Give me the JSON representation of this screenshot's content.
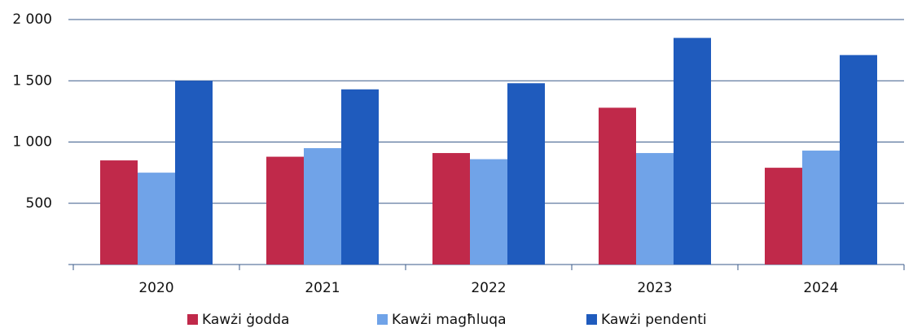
{
  "chart_data": {
    "type": "bar",
    "categories": [
      "2020",
      "2021",
      "2022",
      "2023",
      "2024"
    ],
    "series": [
      {
        "name": "Kawżi ġodda",
        "color": "#c0294a",
        "values": [
          850,
          880,
          910,
          1280,
          790
        ]
      },
      {
        "name": "Kawżi magħluqa",
        "color": "#70a3e8",
        "values": [
          750,
          950,
          860,
          910,
          930
        ]
      },
      {
        "name": "Kawżi pendenti",
        "color": "#1f5bbd",
        "values": [
          1500,
          1430,
          1480,
          1850,
          1710
        ]
      }
    ],
    "ylim": [
      0,
      2000
    ],
    "yticks": [
      {
        "value": 500,
        "label": "500"
      },
      {
        "value": 1000,
        "label": "1 000"
      },
      {
        "value": 1500,
        "label": "1 500"
      },
      {
        "value": 2000,
        "label": "2 000"
      }
    ],
    "grid": true
  }
}
